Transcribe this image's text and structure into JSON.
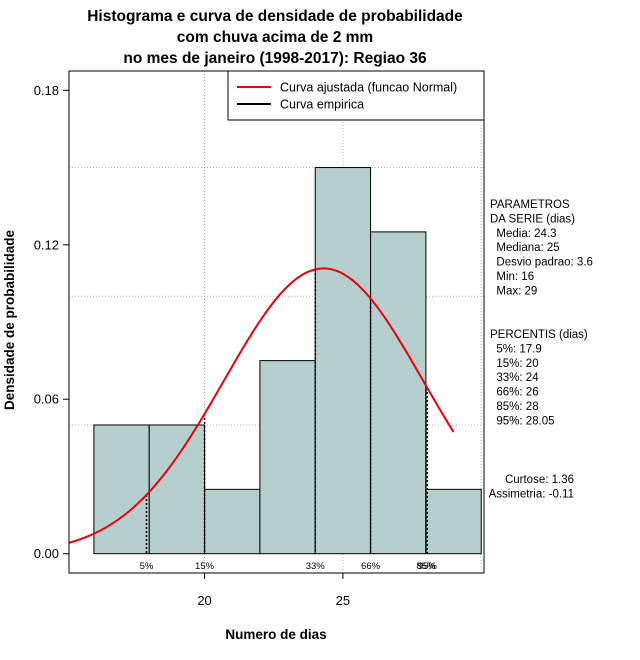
{
  "chart_data": {
    "type": "bar",
    "title_lines": [
      "Histograma e curva de densidade de probabilidade",
      "com chuva acima de 2 mm",
      "no mes de janeiro (1998-2017): Regiao 36"
    ],
    "xlabel": "Numero de dias",
    "ylabel": "Densidade de probabilidade",
    "xlim": [
      15.1,
      30.1
    ],
    "ylim": [
      -0.0075,
      0.1875
    ],
    "x_ticks": [
      20,
      25
    ],
    "y_ticks": [
      0.0,
      0.06,
      0.12,
      0.18
    ],
    "y_tick_labels": [
      "0.00",
      "0.06",
      "0.12",
      "0.18"
    ],
    "grid": true,
    "grid_x": [
      20,
      25,
      30
    ],
    "grid_y": [
      0.05,
      0.1,
      0.15
    ],
    "bin_edges": [
      16,
      18,
      20,
      22,
      24,
      26,
      28,
      30
    ],
    "values": [
      0.05,
      0.05,
      0.025,
      0.075,
      0.15,
      0.125,
      0.025
    ],
    "bar_color": "#b5cfcf",
    "curve_color": "#e8000b",
    "normal_curve": {
      "mean": 24.3,
      "sd": 3.6,
      "x_range": [
        15.1,
        29.0
      ]
    },
    "legend": {
      "position": "top-right",
      "entries": [
        {
          "label": "Curva ajustada (funcao Normal)",
          "color": "#e8000b"
        },
        {
          "label": "Curva empirica",
          "color": "#000000"
        }
      ]
    },
    "percentile_marks": [
      {
        "label": "5%",
        "x": 17.9
      },
      {
        "label": "15%",
        "x": 20
      },
      {
        "label": "33%",
        "x": 24
      },
      {
        "label": "66%",
        "x": 26
      },
      {
        "label": "85%",
        "x": 28
      },
      {
        "label": "95%",
        "x": 28.05
      }
    ],
    "stats_panel": {
      "params": [
        "PARAMETROS",
        "DA SERIE (dias)",
        "  Media: 24.3",
        "  Mediana: 25",
        "  Desvio padrao: 3.6",
        "  Min: 16",
        "  Max: 29"
      ],
      "percentis": [
        "PERCENTIS (dias)",
        "  5%: 17.9",
        "  15%: 20",
        "  33%: 24",
        "  66%: 26",
        "  85%: 28",
        "  95%: 28.05"
      ],
      "shape": [
        "Curtose: 1.36",
        "Assimetria: -0.11"
      ]
    }
  }
}
